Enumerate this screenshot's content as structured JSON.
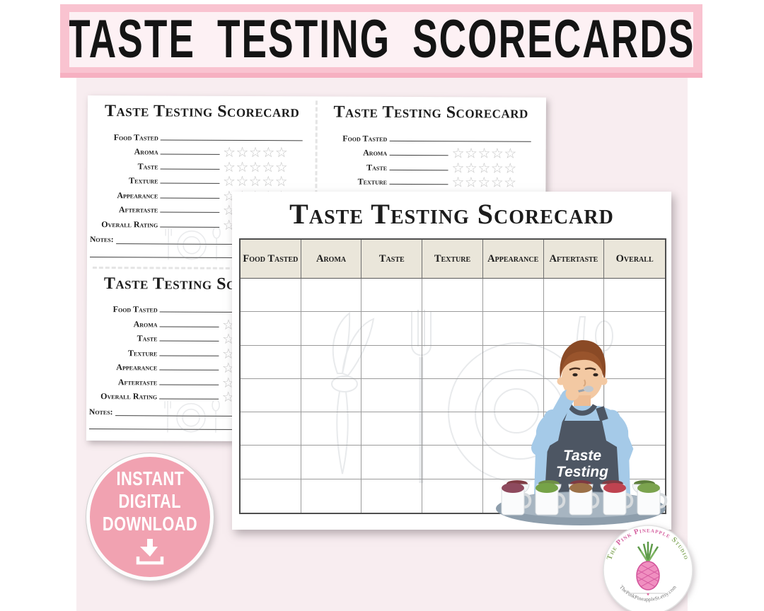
{
  "banner": {
    "title": "TASTE TESTING SCORECARDS"
  },
  "front_card": {
    "title": "Taste Testing Scorecard",
    "columns": [
      "Food Tasted",
      "Aroma",
      "Taste",
      "Texture",
      "Appearance",
      "Aftertaste",
      "Overall"
    ],
    "empty_rows": 7,
    "illustration": {
      "apron_text_line1": "Taste",
      "apron_text_line2": "Testing",
      "mug_topping_colors": [
        "#8e4a5e",
        "#76a348",
        "#9c7148",
        "#bf4350",
        "#7ba34e"
      ],
      "bowl_topping_colors": [
        "#803c44",
        "#6f8f46",
        "#7e3a42",
        "#803c44",
        "#5e7f3c"
      ]
    }
  },
  "mini_card": {
    "title": "Taste Testing Scorecard",
    "fields": [
      {
        "label": "Food Tasted",
        "stars": 0
      },
      {
        "label": "Aroma",
        "stars": 5
      },
      {
        "label": "Taste",
        "stars": 5
      },
      {
        "label": "Texture",
        "stars": 5
      },
      {
        "label": "Appearance",
        "stars": 5
      },
      {
        "label": "Aftertaste",
        "stars": 5
      },
      {
        "label": "Overall Rating",
        "stars": 5
      }
    ],
    "notes_label": "Notes:",
    "star_glyph": "☆",
    "cards_on_sheet": 4
  },
  "badge": {
    "lines": [
      "INSTANT",
      "DIGITAL",
      "DOWNLOAD"
    ],
    "icon": "download-icon"
  },
  "logo": {
    "arc_top_words": [
      {
        "text": "The",
        "color": "#86a95f"
      },
      {
        "text": "Pink",
        "color": "#d45f9e"
      },
      {
        "text": "Pineapple",
        "color": "#d45f9e"
      },
      {
        "text": "Studio",
        "color": "#86a95f"
      }
    ],
    "arc_bottom": "ThePinkPineappleSt.etsy.com"
  },
  "colors": {
    "banner_border": "#f9c3d0",
    "banner_bg": "#fdf1f4",
    "page_bg": "#f8edf0",
    "badge_pink": "#f1a2b1",
    "header_cell_bg": "#eae6da",
    "apron": "#4d5663",
    "shirt": "#a5cae8",
    "star_outline": "#c6c6c6"
  }
}
